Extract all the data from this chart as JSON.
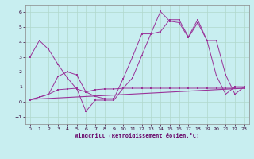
{
  "bg_color": "#c8eef0",
  "line_color": "#993399",
  "xlabel": "Windchill (Refroidissement éolien,°C)",
  "xlim": [
    -0.5,
    23.5
  ],
  "ylim": [
    -1.5,
    6.5
  ],
  "yticks": [
    -1,
    0,
    1,
    2,
    3,
    4,
    5,
    6
  ],
  "xticks": [
    0,
    1,
    2,
    3,
    4,
    5,
    6,
    7,
    8,
    9,
    10,
    11,
    12,
    13,
    14,
    15,
    16,
    17,
    18,
    19,
    20,
    21,
    22,
    23
  ],
  "line1_x": [
    0,
    1,
    2,
    3,
    4,
    5,
    6,
    7,
    8,
    9,
    10,
    11,
    12,
    13,
    14,
    15,
    16,
    17,
    18,
    19,
    20,
    21,
    22,
    23
  ],
  "line1_y": [
    3.0,
    4.1,
    3.5,
    2.5,
    1.6,
    0.85,
    0.65,
    0.8,
    0.85,
    0.85,
    0.9,
    0.9,
    0.9,
    0.9,
    0.9,
    0.9,
    0.9,
    0.9,
    0.9,
    0.9,
    0.9,
    0.9,
    0.9,
    0.9
  ],
  "line2_x": [
    0,
    1,
    2,
    3,
    4,
    5,
    6,
    7,
    8,
    9,
    10,
    11,
    12,
    13,
    14,
    15,
    16,
    17,
    18,
    19,
    20,
    21,
    22,
    23
  ],
  "line2_y": [
    0.15,
    0.3,
    0.5,
    0.8,
    0.85,
    0.9,
    -0.65,
    0.1,
    0.1,
    0.1,
    0.9,
    1.6,
    3.1,
    4.6,
    6.05,
    5.4,
    5.3,
    4.3,
    5.3,
    4.1,
    1.75,
    0.5,
    1.0,
    1.0
  ],
  "line3_x": [
    0,
    1,
    2,
    3,
    4,
    5,
    6,
    7,
    8,
    9,
    10,
    11,
    12,
    13,
    14,
    15,
    16,
    17,
    18,
    19,
    20,
    21,
    22,
    23
  ],
  "line3_y": [
    0.1,
    0.3,
    0.5,
    1.7,
    2.0,
    1.8,
    0.65,
    0.35,
    0.2,
    0.2,
    1.55,
    3.0,
    4.55,
    4.55,
    4.7,
    5.5,
    5.5,
    4.35,
    5.5,
    4.1,
    4.1,
    1.8,
    0.5,
    1.0
  ],
  "trend_x": [
    0,
    23
  ],
  "trend_y": [
    0.15,
    0.9
  ]
}
